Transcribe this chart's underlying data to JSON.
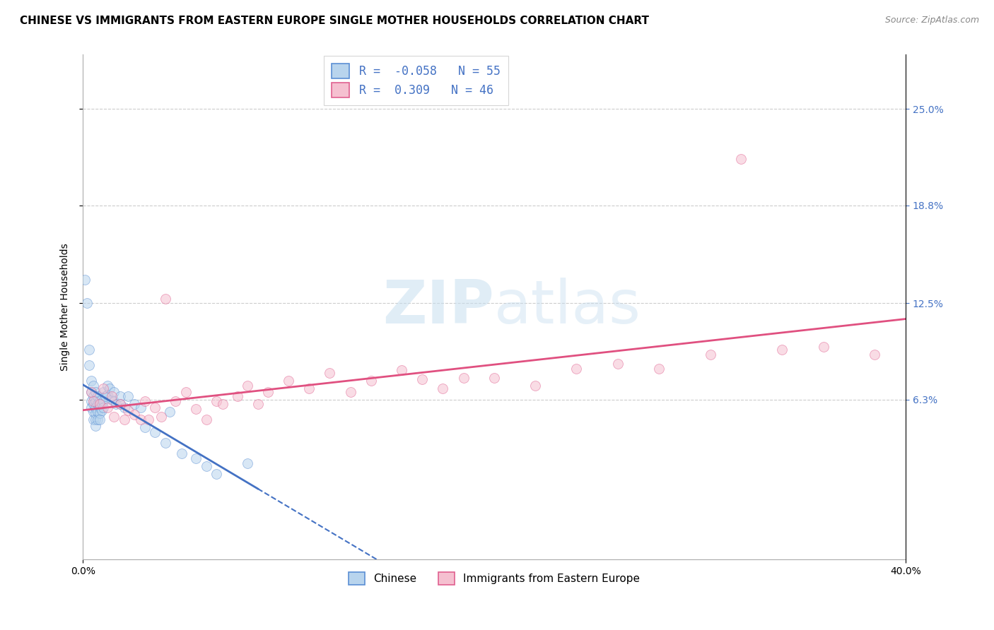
{
  "title": "CHINESE VS IMMIGRANTS FROM EASTERN EUROPE SINGLE MOTHER HOUSEHOLDS CORRELATION CHART",
  "source": "Source: ZipAtlas.com",
  "ylabel": "Single Mother Households",
  "ytick_values": [
    0.063,
    0.125,
    0.188,
    0.25
  ],
  "ytick_labels": [
    "6.3%",
    "12.5%",
    "18.8%",
    "25.0%"
  ],
  "xlim": [
    0.0,
    0.4
  ],
  "ylim": [
    -0.04,
    0.285
  ],
  "chinese_R": -0.058,
  "chinese_N": 55,
  "eastern_europe_R": 0.309,
  "eastern_europe_N": 46,
  "chinese_color_fill": "#b8d4ed",
  "chinese_color_edge": "#5b8fd4",
  "eastern_color_fill": "#f5c0d0",
  "eastern_color_edge": "#e06090",
  "chinese_line_color": "#4472c4",
  "eastern_line_color": "#e05080",
  "chinese_pts": [
    [
      0.001,
      0.14
    ],
    [
      0.002,
      0.125
    ],
    [
      0.003,
      0.095
    ],
    [
      0.003,
      0.085
    ],
    [
      0.004,
      0.075
    ],
    [
      0.004,
      0.068
    ],
    [
      0.004,
      0.062
    ],
    [
      0.004,
      0.058
    ],
    [
      0.005,
      0.072
    ],
    [
      0.005,
      0.065
    ],
    [
      0.005,
      0.06
    ],
    [
      0.005,
      0.055
    ],
    [
      0.005,
      0.05
    ],
    [
      0.006,
      0.068
    ],
    [
      0.006,
      0.062
    ],
    [
      0.006,
      0.058
    ],
    [
      0.006,
      0.054
    ],
    [
      0.006,
      0.05
    ],
    [
      0.006,
      0.046
    ],
    [
      0.007,
      0.065
    ],
    [
      0.007,
      0.06
    ],
    [
      0.007,
      0.055
    ],
    [
      0.007,
      0.05
    ],
    [
      0.008,
      0.062
    ],
    [
      0.008,
      0.058
    ],
    [
      0.008,
      0.054
    ],
    [
      0.008,
      0.05
    ],
    [
      0.009,
      0.06
    ],
    [
      0.009,
      0.056
    ],
    [
      0.01,
      0.068
    ],
    [
      0.01,
      0.062
    ],
    [
      0.01,
      0.058
    ],
    [
      0.011,
      0.065
    ],
    [
      0.012,
      0.072
    ],
    [
      0.012,
      0.066
    ],
    [
      0.013,
      0.07
    ],
    [
      0.014,
      0.063
    ],
    [
      0.015,
      0.068
    ],
    [
      0.015,
      0.062
    ],
    [
      0.016,
      0.06
    ],
    [
      0.018,
      0.065
    ],
    [
      0.018,
      0.06
    ],
    [
      0.02,
      0.058
    ],
    [
      0.022,
      0.065
    ],
    [
      0.025,
      0.06
    ],
    [
      0.028,
      0.058
    ],
    [
      0.03,
      0.045
    ],
    [
      0.035,
      0.042
    ],
    [
      0.04,
      0.035
    ],
    [
      0.042,
      0.055
    ],
    [
      0.048,
      0.028
    ],
    [
      0.055,
      0.025
    ],
    [
      0.06,
      0.02
    ],
    [
      0.065,
      0.015
    ],
    [
      0.08,
      0.022
    ]
  ],
  "eastern_pts": [
    [
      0.004,
      0.068
    ],
    [
      0.005,
      0.062
    ],
    [
      0.008,
      0.06
    ],
    [
      0.01,
      0.07
    ],
    [
      0.012,
      0.058
    ],
    [
      0.014,
      0.065
    ],
    [
      0.015,
      0.052
    ],
    [
      0.018,
      0.06
    ],
    [
      0.02,
      0.05
    ],
    [
      0.022,
      0.056
    ],
    [
      0.025,
      0.053
    ],
    [
      0.028,
      0.05
    ],
    [
      0.03,
      0.062
    ],
    [
      0.032,
      0.05
    ],
    [
      0.035,
      0.058
    ],
    [
      0.038,
      0.052
    ],
    [
      0.04,
      0.128
    ],
    [
      0.045,
      0.062
    ],
    [
      0.05,
      0.068
    ],
    [
      0.055,
      0.057
    ],
    [
      0.06,
      0.05
    ],
    [
      0.065,
      0.062
    ],
    [
      0.068,
      0.06
    ],
    [
      0.075,
      0.065
    ],
    [
      0.08,
      0.072
    ],
    [
      0.085,
      0.06
    ],
    [
      0.09,
      0.068
    ],
    [
      0.1,
      0.075
    ],
    [
      0.11,
      0.07
    ],
    [
      0.12,
      0.08
    ],
    [
      0.13,
      0.068
    ],
    [
      0.14,
      0.075
    ],
    [
      0.155,
      0.082
    ],
    [
      0.165,
      0.076
    ],
    [
      0.175,
      0.07
    ],
    [
      0.185,
      0.077
    ],
    [
      0.2,
      0.077
    ],
    [
      0.22,
      0.072
    ],
    [
      0.24,
      0.083
    ],
    [
      0.26,
      0.086
    ],
    [
      0.28,
      0.083
    ],
    [
      0.305,
      0.092
    ],
    [
      0.32,
      0.218
    ],
    [
      0.34,
      0.095
    ],
    [
      0.36,
      0.097
    ],
    [
      0.385,
      0.092
    ]
  ],
  "chinese_line_x_solid_end": 0.085,
  "title_fontsize": 11,
  "tick_fontsize": 10,
  "source_fontsize": 9,
  "legend_fontsize": 12,
  "dot_size": 100,
  "dot_alpha": 0.55
}
